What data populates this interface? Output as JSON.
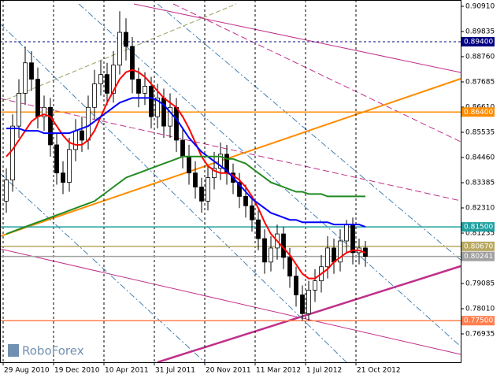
{
  "chart_data": {
    "type": "candlestick",
    "watermark": "RoboForex",
    "xlim": [
      -1,
      72.125
    ],
    "ylim": [
      0.75726,
      0.91179
    ],
    "grid": true,
    "up_color": "#ffffff",
    "down_color": "#000000",
    "xticks": [
      {
        "value": -0.5,
        "label": "29 Aug 2010"
      },
      {
        "value": 7.5,
        "label": "19 Dec 2010"
      },
      {
        "value": 15.5,
        "label": "10 Apr 2011"
      },
      {
        "value": 23.5,
        "label": "31 Jul 2011"
      },
      {
        "value": 31.5,
        "label": "20 Nov 2011"
      },
      {
        "value": 39.5,
        "label": "11 Mar 2012"
      },
      {
        "value": 47.5,
        "label": "1 Jul 2012"
      },
      {
        "value": 55.5,
        "label": "21 Oct 2012"
      }
    ],
    "yticks": [
      {
        "value": 0.9091,
        "label": "0.90910"
      },
      0.89835,
      {
        "value": 0.8876,
        "label": "0.88760"
      },
      0.87685,
      {
        "value": 0.8661,
        "label": "0.86610"
      },
      0.85535,
      {
        "value": 0.8446,
        "label": "0.84460"
      },
      0.83385,
      {
        "value": 0.8231,
        "label": "0.82310"
      },
      0.81235,
      0.79085,
      {
        "value": 0.7801,
        "label": "0.78010"
      },
      0.76935
    ],
    "levels": [
      {
        "value": 0.894,
        "label": "0.89400",
        "color": "#000080"
      },
      {
        "value": 0.864,
        "label": "0.86400",
        "color": "#ff8c00"
      },
      {
        "value": 0.815,
        "label": "0.81500",
        "color": "#20a0a0"
      },
      {
        "value": 0.8067,
        "label": "0.80670",
        "color": "#b8a860"
      },
      {
        "value": 0.80241,
        "label": "0.80241",
        "color": "#a0a0a0"
      },
      {
        "value": 0.775,
        "label": "0.77500",
        "color": "#ff7f50"
      }
    ],
    "open": [
      0.826,
      0.835,
      0.858,
      0.872,
      0.885,
      0.878,
      0.862,
      0.866,
      0.85,
      0.838,
      0.834,
      0.848,
      0.856,
      0.852,
      0.866,
      0.876,
      0.88,
      0.872,
      0.884,
      0.898,
      0.892,
      0.878,
      0.872,
      0.875,
      0.862,
      0.87,
      0.858,
      0.866,
      0.852,
      0.845,
      0.838,
      0.832,
      0.826,
      0.836,
      0.84,
      0.846,
      0.838,
      0.834,
      0.828,
      0.824,
      0.818,
      0.81,
      0.8,
      0.806,
      0.812,
      0.802,
      0.794,
      0.786,
      0.778,
      0.788,
      0.792,
      0.798,
      0.806,
      0.8,
      0.809,
      0.816,
      0.804,
      0.806
    ],
    "high": [
      0.84,
      0.863,
      0.878,
      0.892,
      0.89,
      0.883,
      0.871,
      0.87,
      0.855,
      0.843,
      0.853,
      0.861,
      0.862,
      0.871,
      0.882,
      0.886,
      0.885,
      0.89,
      0.907,
      0.904,
      0.896,
      0.883,
      0.881,
      0.879,
      0.876,
      0.874,
      0.872,
      0.87,
      0.857,
      0.85,
      0.843,
      0.836,
      0.841,
      0.847,
      0.851,
      0.85,
      0.842,
      0.838,
      0.833,
      0.828,
      0.822,
      0.814,
      0.811,
      0.816,
      0.815,
      0.806,
      0.798,
      0.79,
      0.792,
      0.797,
      0.803,
      0.811,
      0.81,
      0.814,
      0.818,
      0.819,
      0.81,
      0.809
    ],
    "low": [
      0.821,
      0.83,
      0.853,
      0.867,
      0.873,
      0.857,
      0.856,
      0.845,
      0.833,
      0.829,
      0.83,
      0.843,
      0.847,
      0.848,
      0.861,
      0.871,
      0.867,
      0.868,
      0.88,
      0.886,
      0.872,
      0.866,
      0.867,
      0.857,
      0.857,
      0.853,
      0.853,
      0.847,
      0.84,
      0.833,
      0.827,
      0.821,
      0.822,
      0.831,
      0.835,
      0.833,
      0.829,
      0.823,
      0.819,
      0.813,
      0.805,
      0.795,
      0.796,
      0.801,
      0.797,
      0.789,
      0.781,
      0.775,
      0.775,
      0.783,
      0.787,
      0.793,
      0.795,
      0.796,
      0.804,
      0.799,
      0.799,
      0.798
    ],
    "close": [
      0.835,
      0.858,
      0.872,
      0.885,
      0.878,
      0.862,
      0.866,
      0.85,
      0.838,
      0.834,
      0.848,
      0.856,
      0.852,
      0.866,
      0.876,
      0.88,
      0.872,
      0.884,
      0.898,
      0.892,
      0.878,
      0.872,
      0.875,
      0.862,
      0.87,
      0.858,
      0.866,
      0.852,
      0.845,
      0.838,
      0.832,
      0.826,
      0.836,
      0.84,
      0.846,
      0.838,
      0.834,
      0.828,
      0.824,
      0.818,
      0.81,
      0.8,
      0.806,
      0.812,
      0.802,
      0.794,
      0.786,
      0.778,
      0.788,
      0.792,
      0.798,
      0.806,
      0.8,
      0.809,
      0.816,
      0.804,
      0.806,
      0.8024
    ],
    "series": [
      {
        "color": "#ff0000",
        "values": [
          0.845,
          0.848,
          0.852,
          0.856,
          0.86,
          0.862,
          0.863,
          0.862,
          0.858,
          0.854,
          0.851,
          0.85,
          0.85,
          0.852,
          0.856,
          0.862,
          0.868,
          0.873,
          0.878,
          0.881,
          0.882,
          0.881,
          0.879,
          0.876,
          0.873,
          0.87,
          0.868,
          0.866,
          0.862,
          0.857,
          0.851,
          0.845,
          0.841,
          0.839,
          0.838,
          0.838,
          0.837,
          0.835,
          0.832,
          0.828,
          0.823,
          0.817,
          0.812,
          0.809,
          0.806,
          0.803,
          0.799,
          0.795,
          0.793,
          0.793,
          0.795,
          0.797,
          0.8,
          0.802,
          0.804,
          0.805,
          0.805,
          0.804
        ]
      },
      {
        "color": "#0000ff",
        "values": [
          0.857,
          0.857,
          0.857,
          0.856,
          0.856,
          0.856,
          0.855,
          0.855,
          0.855,
          0.855,
          0.855,
          0.856,
          0.857,
          0.858,
          0.86,
          0.862,
          0.864,
          0.866,
          0.868,
          0.869,
          0.87,
          0.87,
          0.87,
          0.87,
          0.869,
          0.867,
          0.864,
          0.861,
          0.857,
          0.853,
          0.85,
          0.847,
          0.845,
          0.843,
          0.841,
          0.839,
          0.836,
          0.833,
          0.83,
          0.827,
          0.825,
          0.823,
          0.821,
          0.82,
          0.819,
          0.818,
          0.818,
          0.817,
          0.817,
          0.817,
          0.817,
          0.817,
          0.816,
          0.816,
          0.816,
          0.816,
          0.816,
          0.815
        ]
      },
      {
        "color": "#228b22",
        "values": [
          0.812,
          0.813,
          0.814,
          0.815,
          0.816,
          0.817,
          0.818,
          0.819,
          0.82,
          0.821,
          0.822,
          0.823,
          0.824,
          0.825,
          0.826,
          0.828,
          0.83,
          0.832,
          0.834,
          0.836,
          0.837,
          0.838,
          0.839,
          0.84,
          0.841,
          0.842,
          0.843,
          0.844,
          0.845,
          0.845,
          0.845,
          0.845,
          0.845,
          0.845,
          0.845,
          0.844,
          0.844,
          0.843,
          0.842,
          0.84,
          0.838,
          0.836,
          0.834,
          0.833,
          0.832,
          0.831,
          0.83,
          0.83,
          0.829,
          0.829,
          0.829,
          0.828,
          0.828,
          0.828,
          0.828,
          0.828,
          0.828,
          0.828
        ]
      }
    ]
  }
}
